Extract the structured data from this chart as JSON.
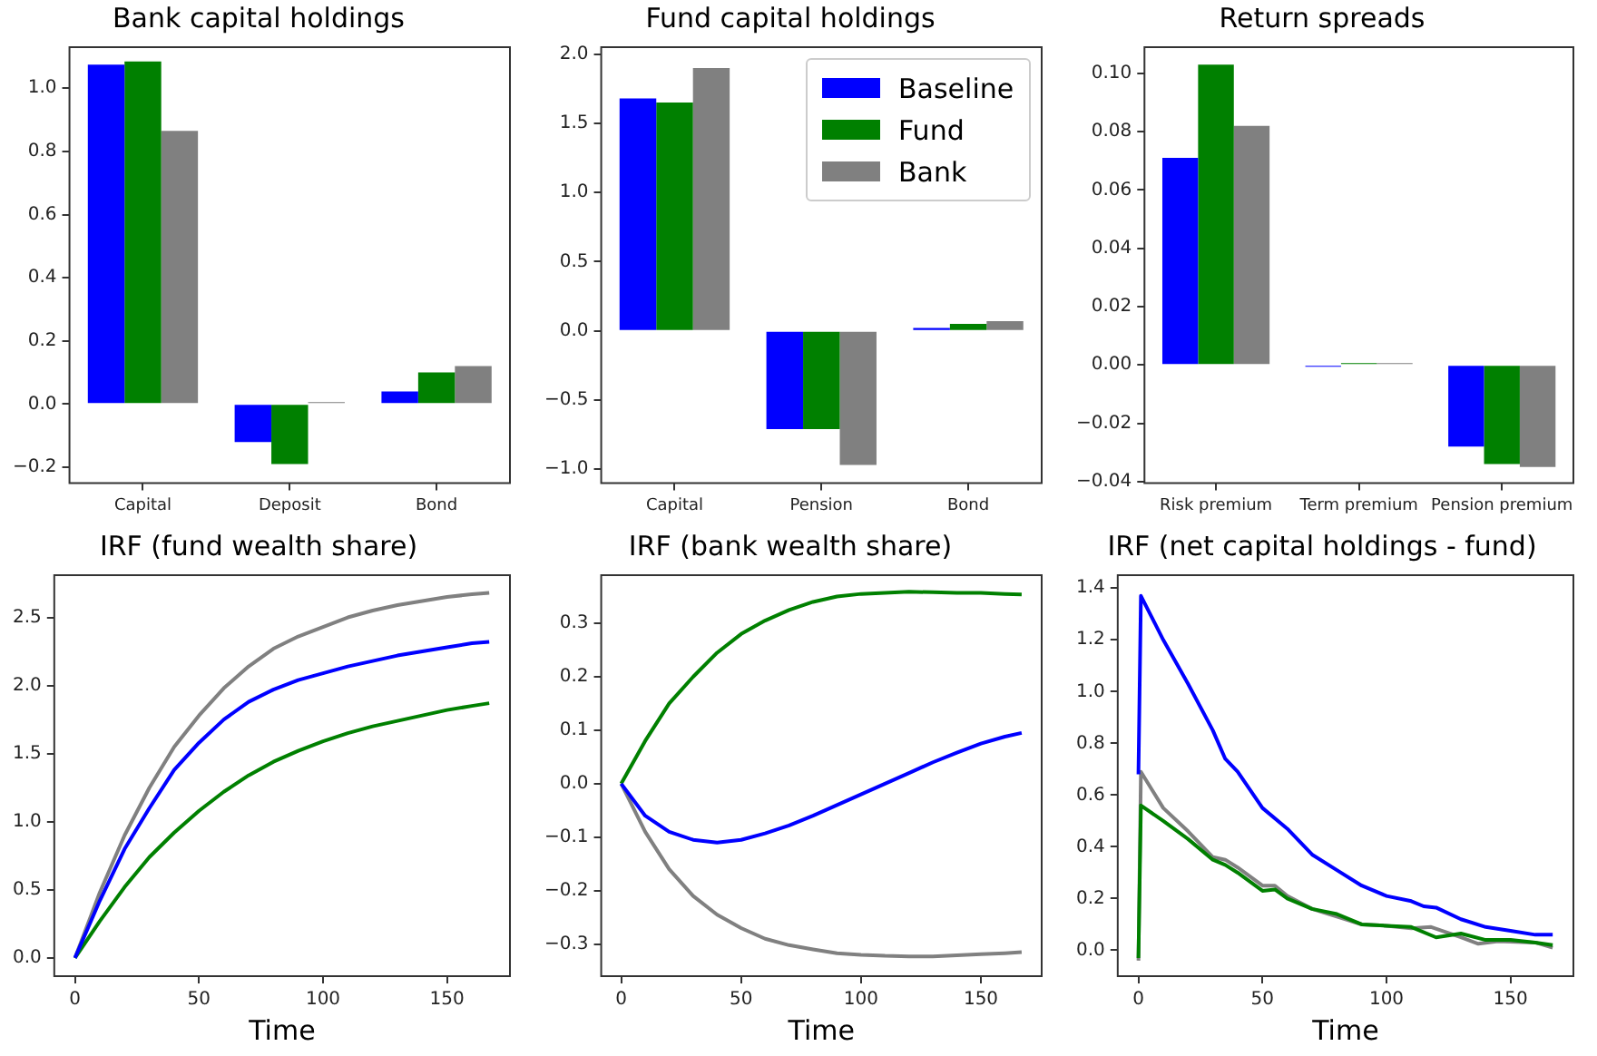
{
  "chart_data": [
    {
      "type": "bar",
      "title": "Bank capital holdings",
      "categories": [
        "Capital",
        "Deposit",
        "Bond"
      ],
      "series": [
        {
          "color": "#0000ff",
          "values": [
            1.075,
            -0.12,
            0.04
          ]
        },
        {
          "color": "#008000",
          "values": [
            1.085,
            -0.19,
            0.1
          ]
        },
        {
          "color": "#808080",
          "values": [
            0.865,
            0.003,
            0.12
          ]
        }
      ],
      "ylim": [
        -0.25,
        1.13
      ],
      "yticks": [
        {
          "value": -0.2,
          "label": "−0.2"
        },
        {
          "value": 0,
          "label": "0.0"
        },
        {
          "value": 0.2,
          "label": "0.2"
        },
        {
          "value": 0.4,
          "label": "0.4"
        },
        {
          "value": 0.6,
          "label": "0.6"
        },
        {
          "value": 0.8,
          "label": "0.8"
        },
        {
          "value": 1,
          "label": "1.0"
        }
      ],
      "grid": false,
      "legend": false
    },
    {
      "type": "bar",
      "title": "Fund capital holdings",
      "categories": [
        "Capital",
        "Pension",
        "Bond"
      ],
      "series": [
        {
          "name": "Baseline",
          "color": "#0000ff",
          "values": [
            1.68,
            -0.71,
            0.02
          ]
        },
        {
          "name": "Fund",
          "color": "#008000",
          "values": [
            1.65,
            -0.71,
            0.05
          ]
        },
        {
          "name": "Bank",
          "color": "#808080",
          "values": [
            1.9,
            -0.97,
            0.07
          ]
        }
      ],
      "ylim": [
        -1.1,
        2.05
      ],
      "yticks": [
        {
          "value": -1,
          "label": "−1.0"
        },
        {
          "value": -0.5,
          "label": "−0.5"
        },
        {
          "value": 0,
          "label": "0.0"
        },
        {
          "value": 0.5,
          "label": "0.5"
        },
        {
          "value": 1,
          "label": "1.0"
        },
        {
          "value": 1.5,
          "label": "1.5"
        },
        {
          "value": 2,
          "label": "2.0"
        }
      ],
      "grid": false,
      "legend": "top right"
    },
    {
      "type": "bar",
      "title": "Return spreads",
      "categories": [
        "Risk premium",
        "Term premium",
        "Pension premium"
      ],
      "series": [
        {
          "color": "#0000ff",
          "values": [
            0.071,
            -0.0002,
            -0.028
          ]
        },
        {
          "color": "#008000",
          "values": [
            0.103,
            0.0003,
            -0.034
          ]
        },
        {
          "color": "#808080",
          "values": [
            0.082,
            0.0003,
            -0.035
          ]
        }
      ],
      "ylim": [
        -0.0405,
        0.109
      ],
      "yticks": [
        {
          "value": -0.04,
          "label": "−0.04"
        },
        {
          "value": -0.02,
          "label": "−0.02"
        },
        {
          "value": 0,
          "label": "0.00"
        },
        {
          "value": 0.02,
          "label": "0.02"
        },
        {
          "value": 0.04,
          "label": "0.04"
        },
        {
          "value": 0.06,
          "label": "0.06"
        },
        {
          "value": 0.08,
          "label": "0.08"
        },
        {
          "value": 0.1,
          "label": "0.10"
        }
      ],
      "grid": false,
      "legend": false
    },
    {
      "type": "line",
      "title": "IRF (fund wealth share)",
      "xlabel": "Time",
      "series": [
        {
          "color": "#0000ff",
          "x": [
            0,
            10,
            20,
            30,
            40,
            50,
            60,
            70,
            80,
            90,
            100,
            110,
            120,
            130,
            140,
            150,
            160,
            167
          ],
          "values": [
            0,
            0.42,
            0.8,
            1.1,
            1.38,
            1.58,
            1.75,
            1.88,
            1.97,
            2.04,
            2.09,
            2.14,
            2.18,
            2.22,
            2.25,
            2.28,
            2.31,
            2.32
          ]
        },
        {
          "color": "#008000",
          "x": [
            0,
            10,
            20,
            30,
            40,
            50,
            60,
            70,
            80,
            90,
            100,
            110,
            120,
            130,
            140,
            150,
            160,
            167
          ],
          "values": [
            0,
            0.27,
            0.52,
            0.74,
            0.92,
            1.08,
            1.22,
            1.34,
            1.44,
            1.52,
            1.59,
            1.65,
            1.7,
            1.74,
            1.78,
            1.82,
            1.85,
            1.87
          ]
        },
        {
          "color": "#808080",
          "x": [
            0,
            10,
            20,
            30,
            40,
            50,
            60,
            70,
            80,
            90,
            100,
            110,
            120,
            130,
            140,
            150,
            160,
            167
          ],
          "values": [
            0,
            0.48,
            0.9,
            1.25,
            1.55,
            1.78,
            1.98,
            2.14,
            2.27,
            2.36,
            2.43,
            2.5,
            2.55,
            2.59,
            2.62,
            2.65,
            2.67,
            2.68
          ]
        }
      ],
      "xlim": [
        -8.35,
        175.35
      ],
      "xticks": [
        0,
        50,
        100,
        150
      ],
      "ylim": [
        -0.134,
        2.81
      ],
      "yticks": [
        {
          "value": 0,
          "label": "0.0"
        },
        {
          "value": 0.5,
          "label": "0.5"
        },
        {
          "value": 1,
          "label": "1.0"
        },
        {
          "value": 1.5,
          "label": "1.5"
        },
        {
          "value": 2,
          "label": "2.0"
        },
        {
          "value": 2.5,
          "label": "2.5"
        }
      ],
      "grid": false,
      "legend": false
    },
    {
      "type": "line",
      "title": "IRF (bank wealth share)",
      "xlabel": "Time",
      "series": [
        {
          "color": "#0000ff",
          "x": [
            0,
            10,
            20,
            30,
            40,
            50,
            60,
            70,
            80,
            90,
            100,
            110,
            120,
            130,
            140,
            150,
            160,
            167
          ],
          "values": [
            0,
            -0.06,
            -0.09,
            -0.105,
            -0.11,
            -0.105,
            -0.093,
            -0.078,
            -0.06,
            -0.04,
            -0.02,
            0,
            0.02,
            0.04,
            0.058,
            0.075,
            0.088,
            0.095
          ]
        },
        {
          "color": "#008000",
          "x": [
            0,
            10,
            20,
            30,
            40,
            50,
            60,
            70,
            80,
            90,
            100,
            110,
            120,
            130,
            140,
            150,
            160,
            167
          ],
          "values": [
            0,
            0.08,
            0.15,
            0.2,
            0.245,
            0.28,
            0.305,
            0.325,
            0.34,
            0.35,
            0.355,
            0.357,
            0.359,
            0.358,
            0.357,
            0.357,
            0.355,
            0.354
          ]
        },
        {
          "color": "#808080",
          "x": [
            0,
            10,
            20,
            30,
            40,
            50,
            60,
            70,
            80,
            90,
            100,
            110,
            120,
            130,
            140,
            150,
            160,
            167
          ],
          "values": [
            0,
            -0.09,
            -0.16,
            -0.21,
            -0.245,
            -0.27,
            -0.29,
            -0.302,
            -0.31,
            -0.317,
            -0.32,
            -0.322,
            -0.323,
            -0.323,
            -0.321,
            -0.319,
            -0.317,
            -0.315
          ]
        }
      ],
      "xlim": [
        -8.35,
        175.35
      ],
      "xticks": [
        0,
        50,
        100,
        150
      ],
      "ylim": [
        -0.36,
        0.39
      ],
      "yticks": [
        {
          "value": -0.3,
          "label": "−0.3"
        },
        {
          "value": -0.2,
          "label": "−0.2"
        },
        {
          "value": -0.1,
          "label": "−0.1"
        },
        {
          "value": 0,
          "label": "0.0"
        },
        {
          "value": 0.1,
          "label": "0.1"
        },
        {
          "value": 0.2,
          "label": "0.2"
        },
        {
          "value": 0.3,
          "label": "0.3"
        }
      ],
      "grid": false,
      "legend": false
    },
    {
      "type": "line",
      "title": "IRF (net capital holdings - fund)",
      "xlabel": "Time",
      "series": [
        {
          "color": "#0000ff",
          "x": [
            0,
            1,
            10,
            20,
            30,
            35,
            40,
            50,
            60,
            70,
            80,
            90,
            100,
            110,
            115,
            120,
            130,
            140,
            150,
            160,
            167
          ],
          "values": [
            0.68,
            1.37,
            1.2,
            1.03,
            0.85,
            0.74,
            0.69,
            0.55,
            0.47,
            0.37,
            0.31,
            0.25,
            0.21,
            0.19,
            0.17,
            0.165,
            0.12,
            0.09,
            0.075,
            0.06,
            0.06
          ]
        },
        {
          "color": "#008000",
          "x": [
            0,
            1,
            10,
            20,
            30,
            35,
            40,
            50,
            55,
            60,
            70,
            80,
            90,
            100,
            110,
            120,
            130,
            140,
            150,
            160,
            167
          ],
          "values": [
            -0.03,
            0.56,
            0.5,
            0.43,
            0.35,
            0.33,
            0.3,
            0.23,
            0.235,
            0.2,
            0.16,
            0.14,
            0.1,
            0.095,
            0.09,
            0.05,
            0.065,
            0.04,
            0.04,
            0.03,
            0.02
          ]
        },
        {
          "color": "#808080",
          "x": [
            0,
            1,
            10,
            20,
            30,
            35,
            40,
            50,
            55,
            60,
            70,
            80,
            90,
            100,
            110,
            118,
            130,
            137,
            145,
            160,
            167
          ],
          "values": [
            -0.04,
            0.69,
            0.55,
            0.46,
            0.36,
            0.35,
            0.32,
            0.25,
            0.25,
            0.21,
            0.16,
            0.13,
            0.1,
            0.095,
            0.085,
            0.09,
            0.05,
            0.025,
            0.035,
            0.03,
            0.01
          ]
        }
      ],
      "xlim": [
        -8.35,
        175.35
      ],
      "xticks": [
        0,
        50,
        100,
        150
      ],
      "ylim": [
        -0.1,
        1.45
      ],
      "yticks": [
        {
          "value": 0,
          "label": "0.0"
        },
        {
          "value": 0.2,
          "label": "0.2"
        },
        {
          "value": 0.4,
          "label": "0.4"
        },
        {
          "value": 0.6,
          "label": "0.6"
        },
        {
          "value": 0.8,
          "label": "0.8"
        },
        {
          "value": 1,
          "label": "1.0"
        },
        {
          "value": 1.2,
          "label": "1.2"
        },
        {
          "value": 1.4,
          "label": "1.4"
        }
      ],
      "grid": false,
      "legend": false
    }
  ]
}
